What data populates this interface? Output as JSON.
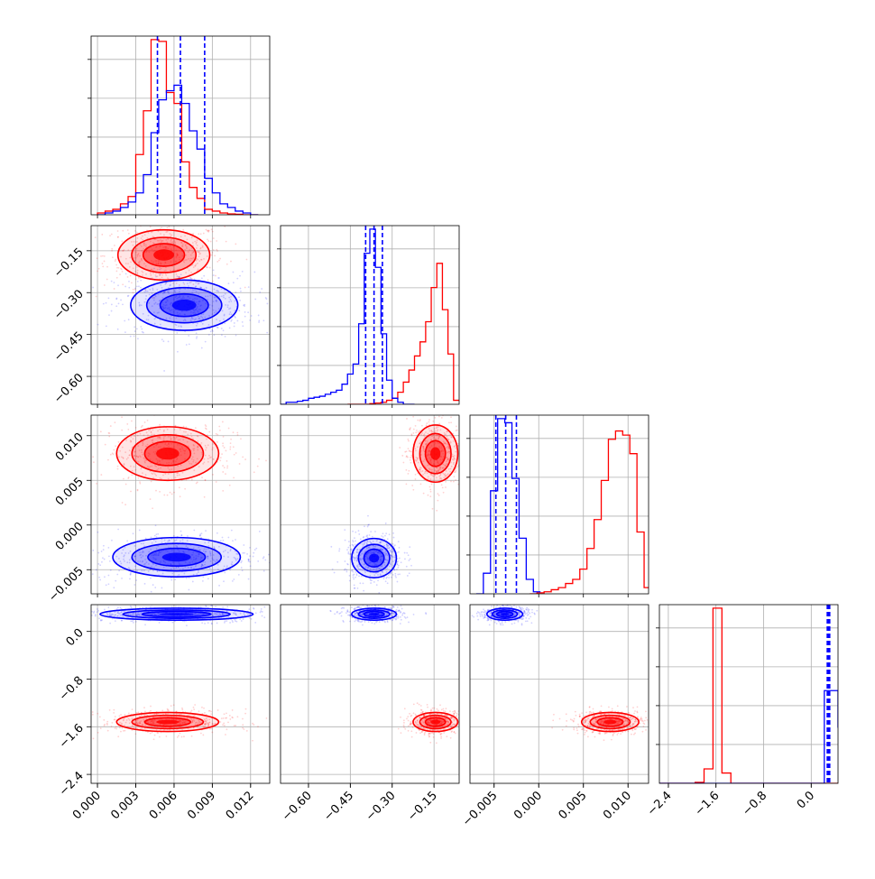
{
  "chart_data": {
    "type": "corner",
    "series": [
      {
        "name": "",
        "color": "#ff0000"
      },
      {
        "name": "",
        "color": "#0000ff"
      }
    ],
    "params": [
      {
        "range": [
          -0.0005,
          0.0135
        ],
        "ticks": [
          "0.000",
          "0.003",
          "0.006",
          "0.009",
          "0.012"
        ],
        "tick_values": [
          0.0,
          0.003,
          0.006,
          0.009,
          0.012
        ]
      },
      {
        "range": [
          -0.7,
          -0.06
        ],
        "ticks": [
          "−0.60",
          "−0.45",
          "−0.30",
          "−0.15"
        ],
        "tick_values": [
          -0.6,
          -0.45,
          -0.3,
          -0.15
        ]
      },
      {
        "range": [
          -0.0077,
          0.0123
        ],
        "ticks": [
          "−0.005",
          "0.000",
          "0.005",
          "0.010"
        ],
        "tick_values": [
          -0.005,
          0.0,
          0.005,
          0.01
        ]
      },
      {
        "range": [
          -2.55,
          0.45
        ],
        "ticks": [
          "−2.4",
          "−1.6",
          "−0.8",
          "0.0"
        ],
        "tick_values": [
          -2.4,
          -1.6,
          -0.8,
          0.0
        ]
      }
    ],
    "quantile_lines": [
      [
        0.0047,
        0.0065,
        0.0084
      ],
      [
        -0.395,
        -0.365,
        -0.335
      ],
      [
        -0.0048,
        -0.0037,
        -0.0025
      ],
      [
        0.27,
        0.29,
        0.31
      ]
    ],
    "histograms": [
      {
        "param": 0,
        "series": "red",
        "edges": [
          0.0,
          0.0006,
          0.0012,
          0.0018,
          0.0024,
          0.003,
          0.0036,
          0.0042,
          0.0048,
          0.0054,
          0.006,
          0.0066,
          0.0072,
          0.0078,
          0.0084,
          0.009,
          0.0096,
          0.0102,
          0.0108,
          0.0114,
          0.012,
          0.0126
        ],
        "counts": [
          1,
          2,
          3,
          6,
          10,
          33,
          57,
          96,
          95,
          67,
          61,
          29,
          15,
          9,
          3,
          2,
          1,
          0.5,
          0.3,
          0,
          0
        ]
      },
      {
        "param": 0,
        "series": "blue",
        "edges": [
          0.0,
          0.0006,
          0.0012,
          0.0018,
          0.0024,
          0.003,
          0.0036,
          0.0042,
          0.0048,
          0.0054,
          0.006,
          0.0066,
          0.0072,
          0.0078,
          0.0084,
          0.009,
          0.0096,
          0.0102,
          0.0108,
          0.0114,
          0.012,
          0.0126
        ],
        "counts": [
          0,
          1,
          2,
          4,
          7,
          12,
          22,
          45,
          63,
          68,
          71,
          61,
          46,
          36,
          20,
          12,
          6,
          4,
          2,
          1,
          0
        ]
      },
      {
        "param": 1,
        "series": "red",
        "edges": [
          -0.46,
          -0.44,
          -0.42,
          -0.4,
          -0.38,
          -0.36,
          -0.34,
          -0.32,
          -0.3,
          -0.28,
          -0.26,
          -0.24,
          -0.22,
          -0.2,
          -0.18,
          -0.16,
          -0.14,
          -0.12,
          -0.1,
          -0.08,
          -0.06
        ],
        "counts": [
          0,
          0,
          0,
          0,
          0.3,
          0.6,
          1,
          2,
          3,
          6,
          11,
          17,
          24,
          31,
          41,
          58,
          70,
          47,
          25,
          2
        ]
      },
      {
        "param": 1,
        "series": "blue",
        "edges": [
          -0.7,
          -0.68,
          -0.66,
          -0.64,
          -0.62,
          -0.6,
          -0.58,
          -0.56,
          -0.54,
          -0.52,
          -0.5,
          -0.48,
          -0.46,
          -0.44,
          -0.42,
          -0.4,
          -0.38,
          -0.36,
          -0.34,
          -0.32,
          -0.3,
          -0.28,
          -0.26,
          -0.24,
          -0.22
        ],
        "counts": [
          0,
          1,
          1,
          1.5,
          2,
          3,
          3.5,
          4,
          5,
          6,
          7,
          10,
          15,
          20,
          40,
          75,
          87,
          68,
          35,
          12,
          3,
          1,
          0,
          0
        ]
      },
      {
        "param": 2,
        "series": "red",
        "edges": [
          -0.001,
          -0.0002,
          0.0006,
          0.0014,
          0.0022,
          0.003,
          0.0038,
          0.0046,
          0.0054,
          0.0062,
          0.007,
          0.0078,
          0.0086,
          0.0094,
          0.0102,
          0.011,
          0.0118,
          0.0126
        ],
        "counts": [
          0,
          0.5,
          1,
          2,
          3,
          5,
          7,
          12,
          22,
          36,
          55,
          75,
          79,
          77,
          68,
          30,
          3,
          1
        ]
      },
      {
        "param": 2,
        "series": "blue",
        "edges": [
          -0.007,
          -0.0062,
          -0.0054,
          -0.0046,
          -0.0038,
          -0.003,
          -0.0022,
          -0.0014,
          -0.0006,
          0.0002
        ],
        "counts": [
          0,
          10,
          50,
          85,
          83,
          56,
          27,
          7,
          1
        ]
      },
      {
        "param": 3,
        "series": "red",
        "edges": [
          -2.55,
          -2.4,
          -2.25,
          -2.1,
          -1.95,
          -1.8,
          -1.65,
          -1.5,
          -1.35,
          -1.2,
          -1.05,
          -0.9,
          -0.75,
          -0.6,
          -0.45,
          -0.3,
          -0.15,
          0.0,
          0.15,
          0.3,
          0.45
        ],
        "counts": [
          0,
          0,
          0,
          0,
          0.5,
          7,
          85,
          5,
          0,
          0,
          0,
          0,
          0,
          0,
          0,
          0,
          0,
          0,
          0,
          0
        ]
      },
      {
        "param": 3,
        "series": "blue",
        "edges": [
          -2.55,
          -2.4,
          -2.25,
          -2.1,
          -1.95,
          -1.8,
          -1.65,
          -1.5,
          -1.35,
          -1.2,
          -1.05,
          -0.9,
          -0.75,
          -0.6,
          -0.45,
          -0.3,
          -0.15,
          0.0,
          0.15,
          0.22,
          0.29,
          0.36,
          0.45
        ],
        "counts": [
          0,
          0,
          0,
          0,
          0,
          0,
          0,
          0,
          0,
          0,
          0,
          0,
          0,
          0,
          0,
          0,
          0,
          0,
          0,
          45,
          45,
          45,
          27
        ]
      }
    ],
    "blobs": [
      {
        "row": 1,
        "col": 0,
        "series": "red",
        "cx": 0.0052,
        "cy": -0.165,
        "sx": 0.0018,
        "sy": 0.045
      },
      {
        "row": 1,
        "col": 0,
        "series": "blue",
        "cx": 0.0068,
        "cy": -0.345,
        "sx": 0.0021,
        "sy": 0.045
      },
      {
        "row": 2,
        "col": 0,
        "series": "red",
        "cx": 0.0055,
        "cy": 0.008,
        "sx": 0.002,
        "sy": 0.0015
      },
      {
        "row": 2,
        "col": 0,
        "series": "blue",
        "cx": 0.0062,
        "cy": -0.0036,
        "sx": 0.0025,
        "sy": 0.0011
      },
      {
        "row": 2,
        "col": 1,
        "series": "red",
        "cx": -0.145,
        "cy": 0.008,
        "sx": 0.04,
        "sy": 0.0016
      },
      {
        "row": 2,
        "col": 1,
        "series": "blue",
        "cx": -0.365,
        "cy": -0.0037,
        "sx": 0.04,
        "sy": 0.0011
      },
      {
        "row": 3,
        "col": 0,
        "series": "red",
        "cx": 0.0055,
        "cy": -1.52,
        "sx": 0.002,
        "sy": 0.08
      },
      {
        "row": 3,
        "col": 0,
        "series": "blue",
        "cx": 0.0062,
        "cy": 0.29,
        "sx": 0.003,
        "sy": 0.05
      },
      {
        "row": 3,
        "col": 1,
        "series": "red",
        "cx": -0.145,
        "cy": -1.52,
        "sx": 0.04,
        "sy": 0.08
      },
      {
        "row": 3,
        "col": 1,
        "series": "blue",
        "cx": -0.365,
        "cy": 0.29,
        "sx": 0.04,
        "sy": 0.05
      },
      {
        "row": 3,
        "col": 2,
        "series": "red",
        "cx": 0.008,
        "cy": -1.52,
        "sx": 0.0016,
        "sy": 0.08
      },
      {
        "row": 3,
        "col": 2,
        "series": "blue",
        "cx": -0.0038,
        "cy": 0.29,
        "sx": 0.001,
        "sy": 0.05
      }
    ],
    "grid": true,
    "title": "",
    "xlabel": "",
    "ylabel": ""
  }
}
